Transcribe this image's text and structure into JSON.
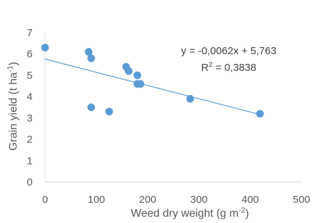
{
  "chart_data": {
    "type": "scatter",
    "xlabel": "Weed dry weight (g m",
    "xlabel_sup": "-2",
    "xlabel_end": ")",
    "ylabel": "Grain yield (t ha",
    "ylabel_sup": "-1",
    "ylabel_end": ")",
    "xlim": [
      0,
      500
    ],
    "ylim": [
      0,
      7
    ],
    "x_ticks": [
      "0",
      "100",
      "200",
      "300",
      "400",
      "500"
    ],
    "y_ticks": [
      "0",
      "1",
      "2",
      "3",
      "4",
      "5",
      "6",
      "7"
    ],
    "x_tick_values": [
      0,
      100,
      200,
      300,
      400,
      500
    ],
    "y_tick_values": [
      0,
      1,
      2,
      3,
      4,
      5,
      6,
      7
    ],
    "grid": false,
    "colors": {
      "marker": "#5b9bd5",
      "trendline": "#5b9bd5",
      "axis": "#d9d9d9"
    },
    "points": [
      {
        "x": 0,
        "y": 6.3
      },
      {
        "x": 85,
        "y": 6.1
      },
      {
        "x": 90,
        "y": 5.8
      },
      {
        "x": 90,
        "y": 3.5
      },
      {
        "x": 125,
        "y": 3.3
      },
      {
        "x": 158,
        "y": 5.4
      },
      {
        "x": 163,
        "y": 5.2
      },
      {
        "x": 180,
        "y": 5.0
      },
      {
        "x": 180,
        "y": 4.6
      },
      {
        "x": 186,
        "y": 4.6
      },
      {
        "x": 283,
        "y": 3.9
      },
      {
        "x": 419,
        "y": 3.2
      }
    ],
    "trendline": {
      "slope": -0.0062,
      "intercept": 5.763,
      "x_range": [
        0,
        419
      ]
    },
    "equation": "y = -0,0062x + 5,763",
    "r2_prefix": "R",
    "r2_sup": "2",
    "r2_value": " = 0,3838"
  }
}
